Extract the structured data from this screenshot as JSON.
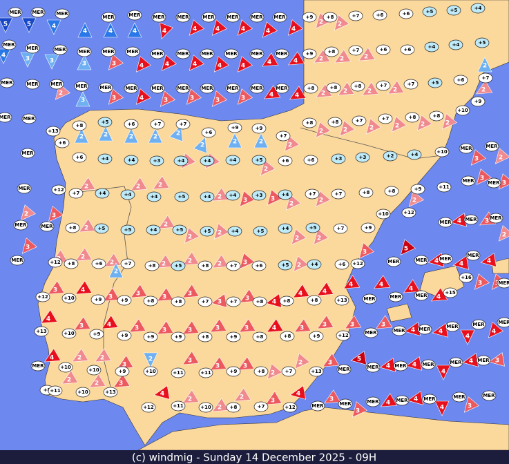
{
  "map": {
    "caption": "(c) windmig - Sunday 14 December 2025 - 09H",
    "stations": [
      "MER",
      "MER",
      "MER",
      "MER",
      "MER",
      "MER",
      "MER",
      "MER",
      "MER",
      "MER",
      "MER",
      "+9",
      "+8",
      "+7",
      "+6",
      "+6",
      "+5",
      "+5",
      "+4",
      "MER",
      "MER",
      "MER",
      "MER",
      "MER",
      "MER",
      "MER",
      "MER",
      "MER",
      "MER",
      "MER",
      "MER",
      "+9",
      "+8",
      "+7",
      "+6",
      "+6",
      "+4",
      "+4",
      "+5",
      "MER",
      "MER",
      "MER",
      "MER",
      "MER",
      "MER",
      "MER",
      "MER",
      "MER",
      "MER",
      "MER",
      "MER",
      "+8",
      "+8",
      "+8",
      "+7",
      "+7",
      "+5",
      "+6",
      "+7",
      "MER",
      "MER",
      "+13",
      "+6",
      "+8",
      "+5",
      "+6",
      "+7",
      "+7",
      "+6",
      "+9",
      "+9",
      "+7",
      "+8",
      "+8",
      "+7",
      "+7",
      "+8",
      "+8",
      "+10",
      "+9",
      "MER",
      "+6",
      "+4",
      "+4",
      "+3",
      "+4",
      "+4",
      "+4",
      "+5",
      "+6",
      "+6",
      "+3",
      "+3",
      "+2",
      "+4",
      "+10",
      "MER",
      "MER",
      "MER",
      "+12",
      "+7",
      "+4",
      "+4",
      "+4",
      "+5",
      "+4",
      "+4",
      "+3",
      "+4",
      "+7",
      "+7",
      "+8",
      "+8",
      "+9",
      "+11",
      "MER",
      "MER",
      "MER",
      "MER",
      "+8",
      "+5",
      "+5",
      "+4",
      "+5",
      "+5",
      "+4",
      "+5",
      "+4",
      "+5",
      "+7",
      "+9",
      "+10",
      "+12",
      "MER",
      "MER",
      "MER",
      "MER",
      "+12",
      "+8",
      "+6",
      "+7",
      "+8",
      "+5",
      "+8",
      "+7",
      "+6",
      "+5",
      "+4",
      "+6",
      "+12",
      "MER",
      "MER",
      "MER",
      "MER",
      "+16",
      "+12",
      "+10",
      "+9",
      "+9",
      "+8",
      "+8",
      "+7",
      "+7",
      "+8",
      "+8",
      "+8",
      "+13",
      "MER",
      "MER",
      "MER",
      "+15",
      "MER",
      "+13",
      "+10",
      "+9",
      "+9",
      "+9",
      "+9",
      "+8",
      "+9",
      "+8",
      "+8",
      "+9",
      "+12",
      "MER",
      "MER",
      "MER",
      "MER",
      "MER",
      "MER",
      "MER",
      "+10",
      "+10",
      "+9",
      "+10",
      "+11",
      "+11",
      "+9",
      "+8",
      "+7",
      "+13",
      "MER",
      "MER",
      "MER",
      "MER",
      "MER",
      "MER",
      "+8",
      "+11",
      "+10",
      "+13",
      "+12",
      "+11",
      "+10",
      "+8",
      "+7",
      "+12",
      "MER",
      "MER",
      "MER",
      "MER",
      "MER",
      "MER",
      "MER"
    ],
    "arrows": [
      5,
      5,
      4,
      4,
      4,
      4,
      4,
      3,
      3,
      3,
      4,
      4,
      4,
      4,
      4,
      4,
      2,
      2,
      3,
      4,
      4,
      4,
      4,
      4,
      4,
      4,
      2,
      2,
      2,
      2,
      2,
      3,
      3,
      4,
      3,
      3,
      3,
      3,
      4,
      4,
      2,
      2,
      2,
      2,
      2,
      2,
      2,
      2,
      2,
      2,
      2,
      2,
      2,
      2,
      2,
      2,
      2,
      2,
      2,
      2,
      2,
      2,
      2,
      3,
      2,
      2,
      2,
      2,
      2,
      3,
      3,
      2,
      2,
      2,
      2,
      3,
      3,
      3,
      2,
      2,
      2,
      2,
      2,
      2,
      3,
      4,
      3,
      5,
      4,
      4,
      4,
      2,
      2,
      2,
      2,
      2,
      2,
      2,
      2,
      3,
      2,
      3,
      3,
      3,
      4,
      3,
      3,
      3,
      3,
      3,
      3,
      4,
      4,
      4,
      4,
      4,
      4,
      4,
      3,
      4,
      3,
      4,
      3,
      3,
      3,
      3,
      3,
      4,
      3,
      3,
      3,
      3,
      4,
      4,
      4,
      4,
      4,
      2,
      2,
      3,
      2,
      3,
      3,
      3,
      2,
      2,
      3,
      5,
      4,
      4,
      4,
      4,
      3,
      2,
      2,
      3,
      4,
      2,
      2,
      2,
      3,
      4,
      3,
      3,
      4,
      4,
      4,
      3
    ]
  }
}
